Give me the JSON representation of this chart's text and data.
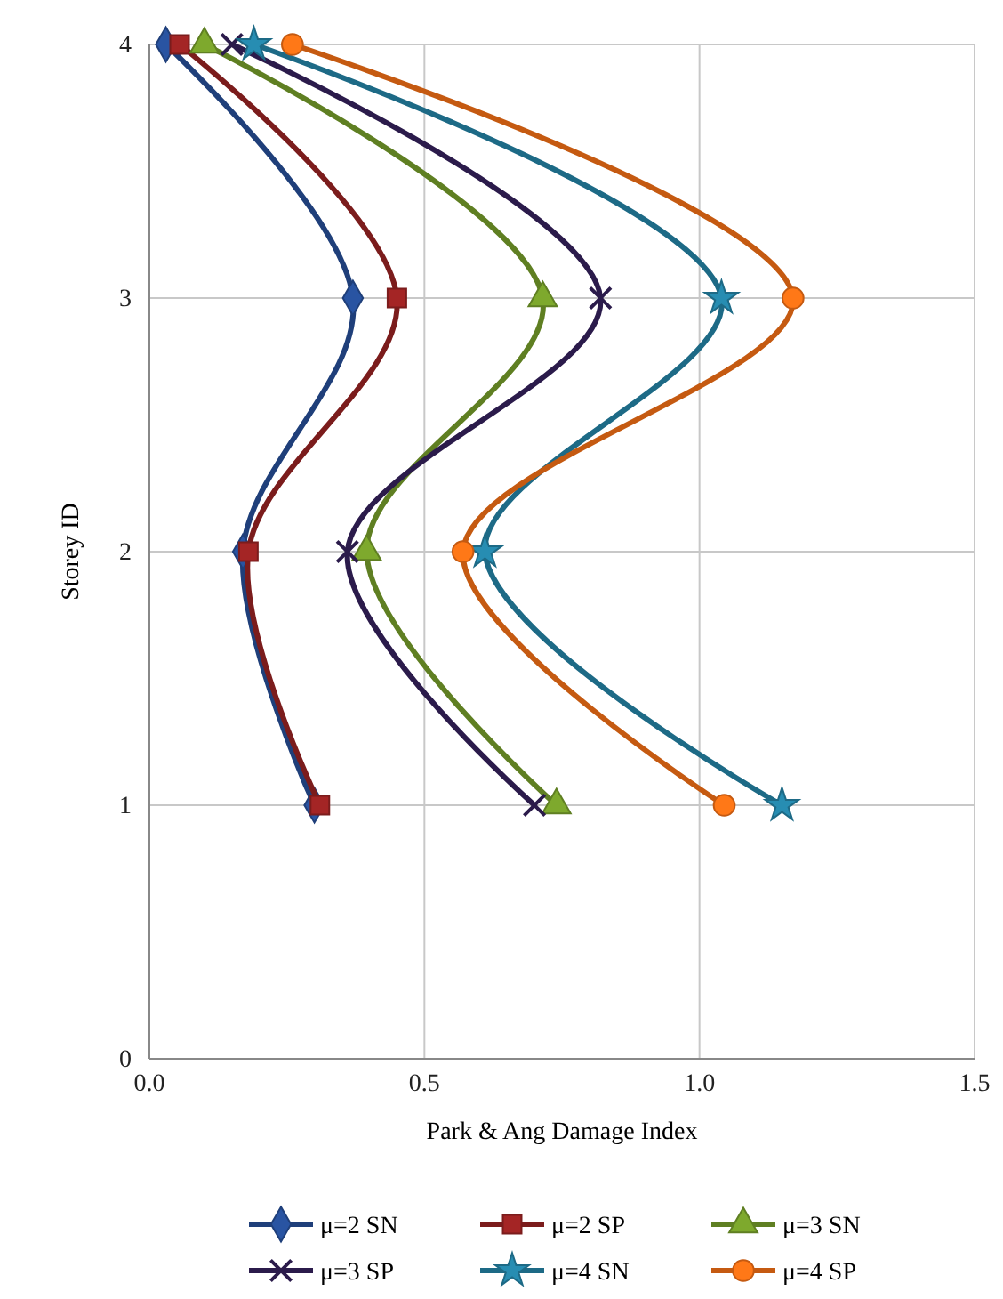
{
  "chart_data": {
    "type": "line",
    "xlabel": "Park & Ang Damage Index",
    "ylabel": "Storey ID",
    "xlim": [
      0,
      1.5
    ],
    "xticks": [
      {
        "value": 0,
        "label": "0.0"
      },
      {
        "value": 0.5,
        "label": "0.5"
      },
      {
        "value": 1,
        "label": "1.0"
      },
      {
        "value": 1.5,
        "label": "1.5"
      }
    ],
    "ylim": [
      0,
      4
    ],
    "yticks": [
      0,
      1,
      2,
      3,
      4
    ],
    "grid": true,
    "legend": "bottom",
    "series": [
      {
        "name": "μ=2 SN",
        "color": "#1f3f7a",
        "marker": "diamond",
        "x": [
          0.3,
          0.17,
          0.37,
          0.03
        ],
        "values": [
          1,
          2,
          3,
          4
        ]
      },
      {
        "name": "μ=2 SP",
        "color": "#7b1c1c",
        "marker": "square",
        "x": [
          0.31,
          0.18,
          0.45,
          0.055
        ],
        "values": [
          1,
          2,
          3,
          4
        ]
      },
      {
        "name": "μ=3 SN",
        "color": "#5f7f22",
        "marker": "triangle",
        "x": [
          0.74,
          0.395,
          0.715,
          0.1
        ],
        "values": [
          1,
          2,
          3,
          4
        ]
      },
      {
        "name": "μ=3 SP",
        "color": "#2b1b4b",
        "marker": "cross",
        "x": [
          0.7,
          0.36,
          0.82,
          0.15
        ],
        "values": [
          1,
          2,
          3,
          4
        ]
      },
      {
        "name": "μ=4 SN",
        "color": "#1d6a86",
        "marker": "star",
        "x": [
          1.15,
          0.61,
          1.04,
          0.19
        ],
        "values": [
          1,
          2,
          3,
          4
        ]
      },
      {
        "name": "μ=4 SP",
        "color": "#c55a11",
        "marker": "circle",
        "x": [
          1.045,
          0.57,
          1.17,
          0.26
        ],
        "values": [
          1,
          2,
          3,
          4
        ]
      }
    ]
  }
}
